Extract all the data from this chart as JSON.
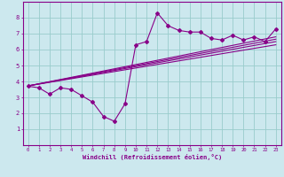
{
  "xlabel": "Windchill (Refroidissement éolien,°C)",
  "bg_color": "#cce8ee",
  "line_color": "#880088",
  "grid_color": "#99cccc",
  "x_data": [
    0,
    1,
    2,
    3,
    4,
    5,
    6,
    7,
    8,
    9,
    10,
    11,
    12,
    13,
    14,
    15,
    16,
    17,
    18,
    19,
    20,
    21,
    22,
    23
  ],
  "y_scatter": [
    3.7,
    3.6,
    3.2,
    3.6,
    3.5,
    3.1,
    2.7,
    1.8,
    1.5,
    2.6,
    6.3,
    6.5,
    8.3,
    7.5,
    7.2,
    7.1,
    7.1,
    6.7,
    6.6,
    6.9,
    6.6,
    6.8,
    6.5,
    7.3
  ],
  "ylim": [
    0,
    9
  ],
  "xlim": [
    -0.5,
    23.5
  ],
  "yticks": [
    1,
    2,
    3,
    4,
    5,
    6,
    7,
    8
  ],
  "xticks": [
    0,
    1,
    2,
    3,
    4,
    5,
    6,
    7,
    8,
    9,
    10,
    11,
    12,
    13,
    14,
    15,
    16,
    17,
    18,
    19,
    20,
    21,
    22,
    23
  ],
  "regression_lines": [
    {
      "x0": 0,
      "x1": 23,
      "y0": 3.72,
      "y1": 6.3
    },
    {
      "x0": 0,
      "x1": 23,
      "y0": 3.72,
      "y1": 6.5
    },
    {
      "x0": 0,
      "x1": 23,
      "y0": 3.72,
      "y1": 6.65
    },
    {
      "x0": 0,
      "x1": 23,
      "y0": 3.72,
      "y1": 6.8
    }
  ]
}
